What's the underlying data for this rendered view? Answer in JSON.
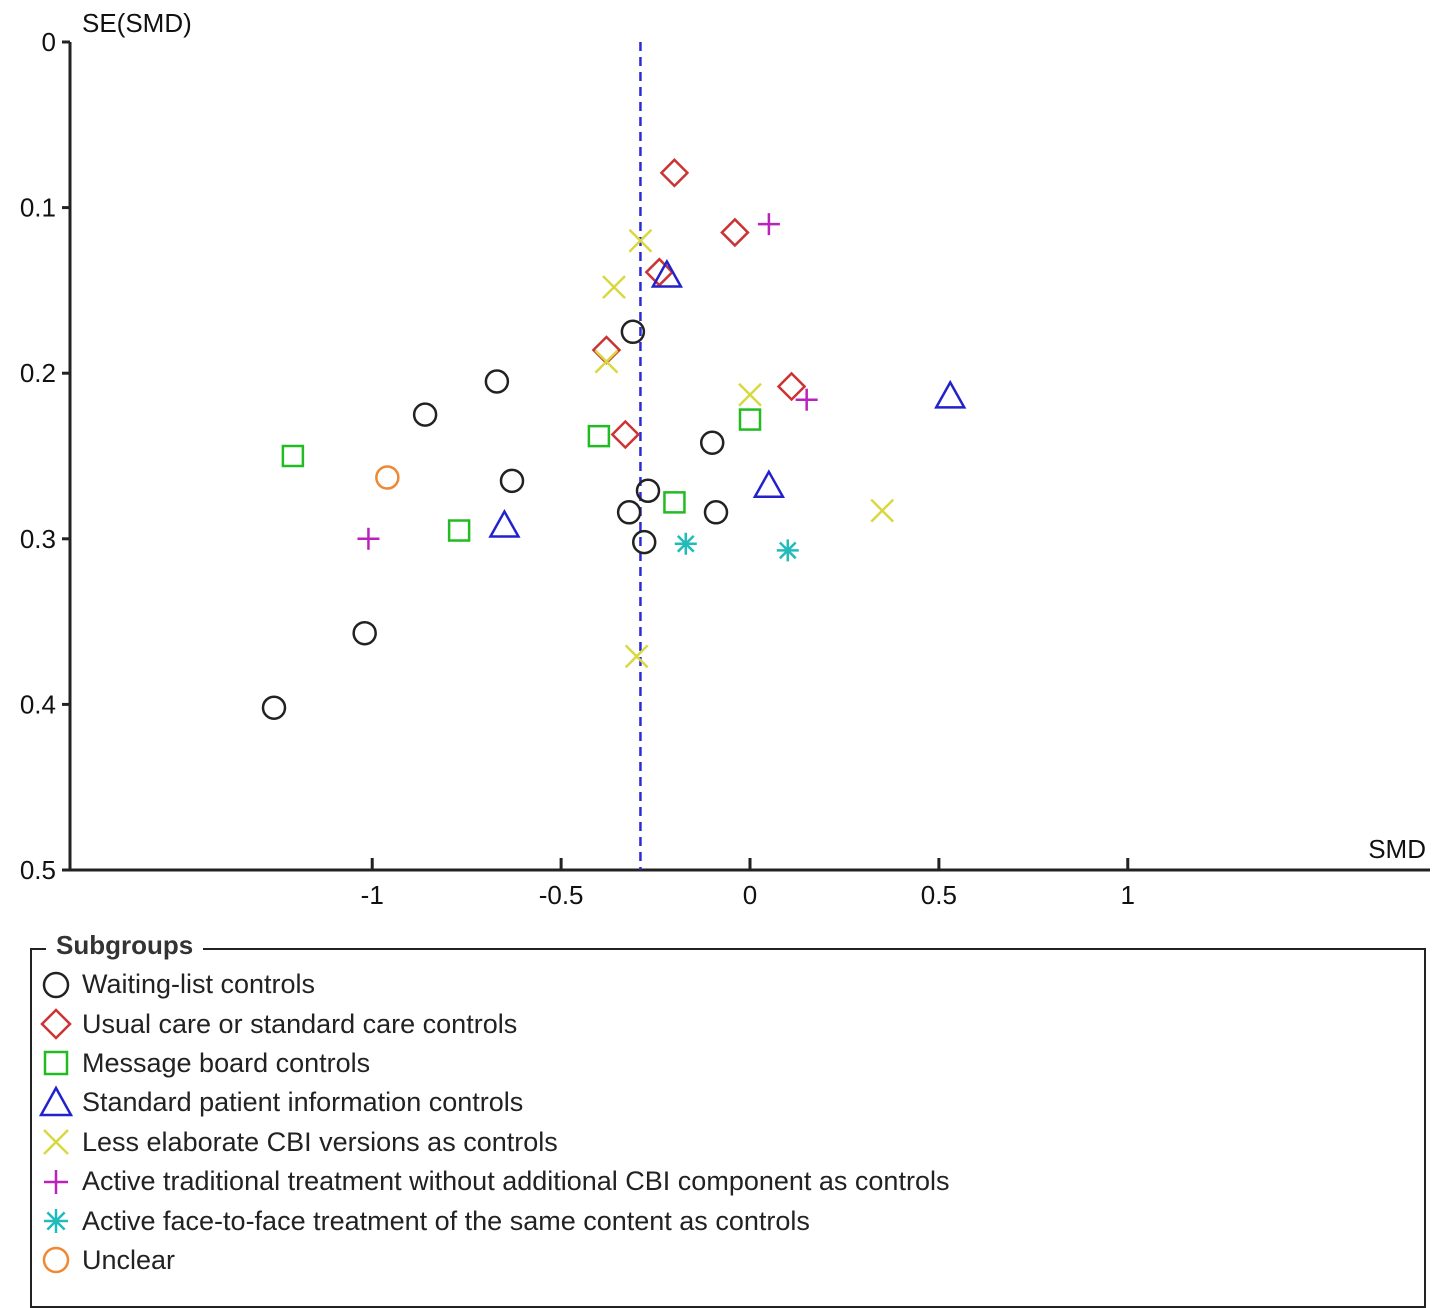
{
  "chart_data": {
    "type": "scatter",
    "subtype": "funnel-plot",
    "xlabel": "SMD",
    "ylabel": "SE(SMD)",
    "xlim": [
      -1.8,
      1.8
    ],
    "ylim": [
      0,
      0.5
    ],
    "y_inverted": true,
    "x_ticks": [
      -1,
      -0.5,
      0,
      0.5,
      1
    ],
    "x_tick_labels": [
      "-1",
      "-0.5",
      "0",
      "0.5",
      "1"
    ],
    "y_ticks": [
      0,
      0.1,
      0.2,
      0.3,
      0.4,
      0.5
    ],
    "y_tick_labels": [
      "0",
      "0.1",
      "0.2",
      "0.3",
      "0.4",
      "0.5"
    ],
    "reference_line": {
      "x": -0.29,
      "style": "dashed",
      "color": "#2b2bd6"
    },
    "grid": false,
    "legend_title": "Subgroups",
    "legend_position": "bottom",
    "series": [
      {
        "name": "Waiting-list controls",
        "marker": "circle",
        "color": "#222222",
        "points": [
          [
            -0.31,
            0.175
          ],
          [
            -0.67,
            0.205
          ],
          [
            -0.86,
            0.225
          ],
          [
            -0.63,
            0.265
          ],
          [
            -0.27,
            0.271
          ],
          [
            -0.32,
            0.284
          ],
          [
            -0.28,
            0.302
          ],
          [
            -0.1,
            0.242
          ],
          [
            -0.09,
            0.284
          ],
          [
            -1.02,
            0.357
          ],
          [
            -1.26,
            0.402
          ]
        ]
      },
      {
        "name": "Usual care or standard care controls",
        "marker": "diamond",
        "color": "#cc3333",
        "points": [
          [
            -0.2,
            0.079
          ],
          [
            -0.04,
            0.115
          ],
          [
            -0.24,
            0.139
          ],
          [
            -0.38,
            0.186
          ],
          [
            -0.33,
            0.237
          ],
          [
            0.11,
            0.208
          ]
        ]
      },
      {
        "name": "Message board controls",
        "marker": "square",
        "color": "#22bb22",
        "points": [
          [
            -1.21,
            0.25
          ],
          [
            -0.4,
            0.238
          ],
          [
            0.0,
            0.228
          ],
          [
            -0.77,
            0.295
          ],
          [
            -0.2,
            0.278
          ]
        ]
      },
      {
        "name": "Standard patient information controls",
        "marker": "triangle",
        "color": "#2222cc",
        "points": [
          [
            -0.22,
            0.141
          ],
          [
            0.53,
            0.214
          ],
          [
            0.05,
            0.268
          ],
          [
            -0.65,
            0.292
          ]
        ]
      },
      {
        "name": "Less elaborate CBI versions as controls",
        "marker": "x",
        "color": "#d8d840",
        "points": [
          [
            -0.29,
            0.12
          ],
          [
            -0.36,
            0.148
          ],
          [
            -0.38,
            0.193
          ],
          [
            0.0,
            0.213
          ],
          [
            0.35,
            0.283
          ],
          [
            -0.3,
            0.371
          ]
        ]
      },
      {
        "name": "Active traditional treatment without additional CBI component as controls",
        "marker": "plus",
        "color": "#bb22bb",
        "points": [
          [
            0.05,
            0.11
          ],
          [
            0.15,
            0.216
          ],
          [
            -1.01,
            0.3
          ]
        ]
      },
      {
        "name": "Active face-to-face treatment of the same content as controls",
        "marker": "asterisk",
        "color": "#22bbbb",
        "points": [
          [
            -0.17,
            0.303
          ],
          [
            0.1,
            0.307
          ]
        ]
      },
      {
        "name": "Unclear",
        "marker": "circle",
        "color": "#ee8833",
        "points": [
          [
            -0.96,
            0.263
          ]
        ]
      }
    ]
  }
}
